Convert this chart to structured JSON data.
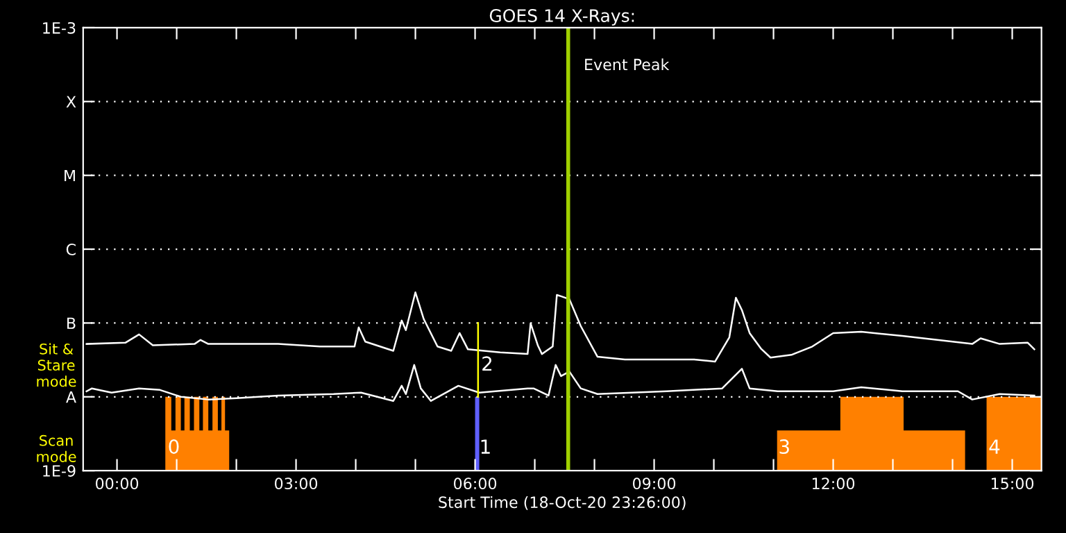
{
  "chart_data": {
    "type": "line",
    "title": "GOES 14 X-Rays:",
    "xlabel": "Start Time (18-Oct-20 23:26:00)",
    "log": "y",
    "grid": "y",
    "legend": false,
    "xlim": [
      -0.567,
      15.49
    ],
    "xticks": [
      {
        "value": 0,
        "label": "00:00"
      },
      {
        "value": 1,
        "label": null
      },
      {
        "value": 2,
        "label": null
      },
      {
        "value": 3,
        "label": "03:00"
      },
      {
        "value": 4,
        "label": null
      },
      {
        "value": 5,
        "label": null
      },
      {
        "value": 6,
        "label": "06:00"
      },
      {
        "value": 7,
        "label": null
      },
      {
        "value": 8,
        "label": null
      },
      {
        "value": 9,
        "label": "09:00"
      },
      {
        "value": 10,
        "label": null
      },
      {
        "value": 11,
        "label": null
      },
      {
        "value": 12,
        "label": "12:00"
      },
      {
        "value": 13,
        "label": null
      },
      {
        "value": 14,
        "label": null
      },
      {
        "value": 15,
        "label": "15:00"
      }
    ],
    "ylim": [
      1e-09,
      0.001
    ],
    "yticks": [
      {
        "value": 1e-09,
        "label": "1E-9"
      },
      {
        "value": 1e-08,
        "label": "A"
      },
      {
        "value": 1e-07,
        "label": "B"
      },
      {
        "value": 1e-06,
        "label": "C"
      },
      {
        "value": 1e-05,
        "label": "M"
      },
      {
        "value": 0.0001,
        "label": "X"
      },
      {
        "value": 0.001,
        "label": "1E-3"
      }
    ],
    "ref_lines": [
      {
        "axis": "x",
        "value": 7.56,
        "label": "Event Peak",
        "color": "#a0d000"
      }
    ],
    "annotations": [
      "Sit & Stare mode",
      "Scan mode",
      {
        "text": "0",
        "x": 0.85,
        "y": 1.5e-09
      },
      {
        "text": "1",
        "x": 6.07,
        "y": 1.5e-09
      },
      {
        "text": "2",
        "x": 6.1,
        "y": 2e-08
      },
      {
        "text": "3",
        "x": 11.08,
        "y": 1.5e-09
      },
      {
        "text": "4",
        "x": 14.6,
        "y": 1.5e-09
      }
    ],
    "series": [
      {
        "color": "#ffffff",
        "x": [
          -0.51,
          0.14,
          0.37,
          0.6,
          1.3,
          1.4,
          1.53,
          2.7,
          3.4,
          3.98,
          4.05,
          4.16,
          4.63,
          4.77,
          4.84,
          5.0,
          5.14,
          5.37,
          5.6,
          5.74,
          5.88,
          6.42,
          6.88,
          6.93,
          7.05,
          7.12,
          7.3,
          7.37,
          7.44,
          7.58,
          7.77,
          8.05,
          8.51,
          9.67,
          10.02,
          10.26,
          10.37,
          10.47,
          10.6,
          10.79,
          10.95,
          11.3,
          11.65,
          12.0,
          12.47,
          13.16,
          14.33,
          14.47,
          14.79,
          15.26,
          15.37
        ],
        "values": [
          5.2e-08,
          5.4e-08,
          7e-08,
          5e-08,
          5.2e-08,
          5.9e-08,
          5.2e-08,
          5.2e-08,
          4.8e-08,
          4.8e-08,
          8.7e-08,
          5.6e-08,
          4.2e-08,
          1.08e-07,
          8e-08,
          2.6e-07,
          1.13e-07,
          4.8e-08,
          4.2e-08,
          7.3e-08,
          4.4e-08,
          4e-08,
          3.8e-08,
          9.9e-08,
          5e-08,
          3.8e-08,
          4.8e-08,
          2.4e-07,
          2.3e-07,
          2.1e-07,
          9.1e-08,
          3.5e-08,
          3.2e-08,
          3.2e-08,
          3e-08,
          6.4e-08,
          2.2e-07,
          1.5e-07,
          7.3e-08,
          4.5e-08,
          3.4e-08,
          3.7e-08,
          4.8e-08,
          7.3e-08,
          7.6e-08,
          6.7e-08,
          5.2e-08,
          6.2e-08,
          5.2e-08,
          5.4e-08,
          4.4e-08
        ]
      },
      {
        "color": "#ffffff",
        "x": [
          -0.51,
          -0.42,
          -0.09,
          0.37,
          0.72,
          1.07,
          1.53,
          2.0,
          2.7,
          3.63,
          4.09,
          4.63,
          4.77,
          4.84,
          4.98,
          5.09,
          5.26,
          5.72,
          6.07,
          6.88,
          6.98,
          7.23,
          7.35,
          7.44,
          7.58,
          7.77,
          8.05,
          9.21,
          10.14,
          10.47,
          10.6,
          11.07,
          12.0,
          12.47,
          13.16,
          14.09,
          14.33,
          14.79,
          15.37
        ],
        "values": [
          1.19e-08,
          1.3e-08,
          1.14e-08,
          1.3e-08,
          1.24e-08,
          1e-08,
          9.2e-09,
          9.6e-09,
          1.04e-08,
          1.09e-08,
          1.14e-08,
          8.8e-09,
          1.41e-08,
          1.09e-08,
          2.7e-08,
          1.3e-08,
          8.8e-09,
          1.41e-08,
          1.14e-08,
          1.3e-08,
          1.3e-08,
          1.04e-08,
          2.7e-08,
          1.91e-08,
          2.2e-08,
          1.3e-08,
          1.09e-08,
          1.19e-08,
          1.3e-08,
          2.4e-08,
          1.3e-08,
          1.19e-08,
          1.19e-08,
          1.35e-08,
          1.19e-08,
          1.19e-08,
          9.2e-09,
          1.09e-08,
          1.04e-08
        ]
      },
      {
        "type": "area",
        "color": "#ff8000",
        "x": [
          0.81,
          0.81,
          0.91,
          0.91,
          0.98,
          0.98,
          1.07,
          1.07,
          1.13,
          1.13,
          1.22,
          1.22,
          1.29,
          1.29,
          1.38,
          1.38,
          1.44,
          1.44,
          1.53,
          1.53,
          1.6,
          1.6,
          1.69,
          1.69,
          1.75,
          1.75,
          1.81,
          1.81,
          1.88,
          1.88,
          11.06,
          11.06,
          12.12,
          12.12,
          13.18,
          13.18,
          14.21,
          14.21,
          14.57,
          14.57,
          15.49
        ],
        "values": [
          1e-09,
          1e-08,
          1e-08,
          3.5e-09,
          3.5e-09,
          1e-08,
          1e-08,
          3.5e-09,
          3.5e-09,
          1e-08,
          1e-08,
          3.5e-09,
          3.5e-09,
          1e-08,
          1e-08,
          3.5e-09,
          3.5e-09,
          1e-08,
          1e-08,
          3.5e-09,
          3.5e-09,
          1e-08,
          1e-08,
          3.5e-09,
          3.5e-09,
          1e-08,
          1e-08,
          3.5e-09,
          3.5e-09,
          1e-09,
          1e-09,
          3.5e-09,
          3.5e-09,
          1e-08,
          1e-08,
          3.5e-09,
          3.5e-09,
          1e-09,
          1e-09,
          1e-08,
          1e-08
        ]
      },
      {
        "type": "area",
        "color": "#6060ff",
        "x": [
          6.0,
          6.0,
          6.07,
          6.07
        ],
        "values": [
          1e-09,
          1e-08,
          1e-08,
          1e-09
        ]
      },
      {
        "type": "line",
        "color": "#ffff00",
        "x": [
          6.05,
          6.05
        ],
        "values": [
          1e-08,
          1e-07
        ]
      }
    ]
  }
}
